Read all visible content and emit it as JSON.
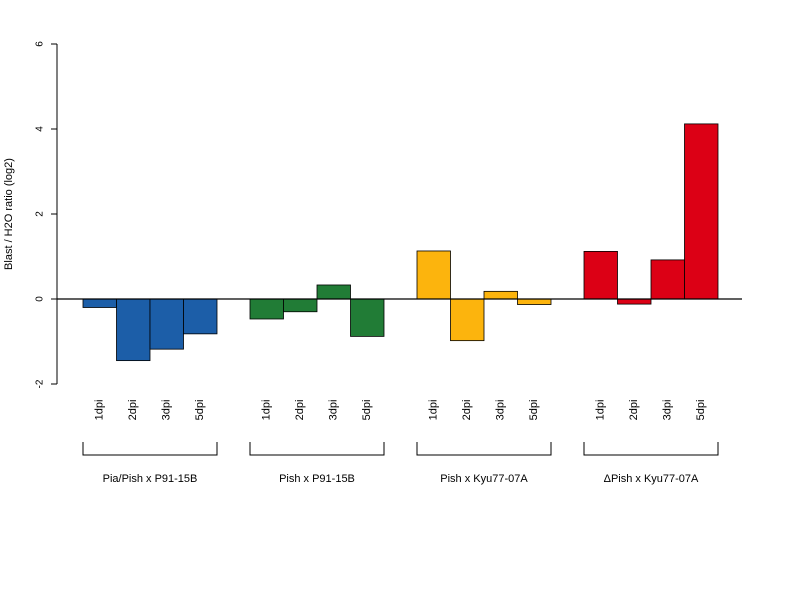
{
  "chart_data": {
    "type": "bar",
    "ylabel": "Blast / H2O ratio (log2)",
    "ylim": [
      -2,
      6
    ],
    "yticks": [
      "-2",
      "0",
      "2",
      "4",
      "6"
    ],
    "grid": false,
    "legend": "none",
    "groups": [
      {
        "name": "Pia/Pish x P91-15B",
        "color": "#1c5ea8",
        "categories": [
          "1dpi",
          "2dpi",
          "3dpi",
          "5dpi"
        ],
        "values": [
          -0.2,
          -1.45,
          -1.18,
          -0.82
        ]
      },
      {
        "name": "Pish x P91-15B",
        "color": "#217c36",
        "categories": [
          "1dpi",
          "2dpi",
          "3dpi",
          "5dpi"
        ],
        "values": [
          -0.47,
          -0.3,
          0.33,
          -0.88
        ]
      },
      {
        "name": "Pish x Kyu77-07A",
        "color": "#fcb40d",
        "categories": [
          "1dpi",
          "2dpi",
          "3dpi",
          "5dpi"
        ],
        "values": [
          1.13,
          -0.98,
          0.18,
          -0.13
        ]
      },
      {
        "name": "ΔPish x Kyu77-07A",
        "color": "#dc0015",
        "categories": [
          "1dpi",
          "2dpi",
          "3dpi",
          "5dpi"
        ],
        "values": [
          1.12,
          -0.12,
          0.92,
          4.12
        ]
      }
    ]
  }
}
